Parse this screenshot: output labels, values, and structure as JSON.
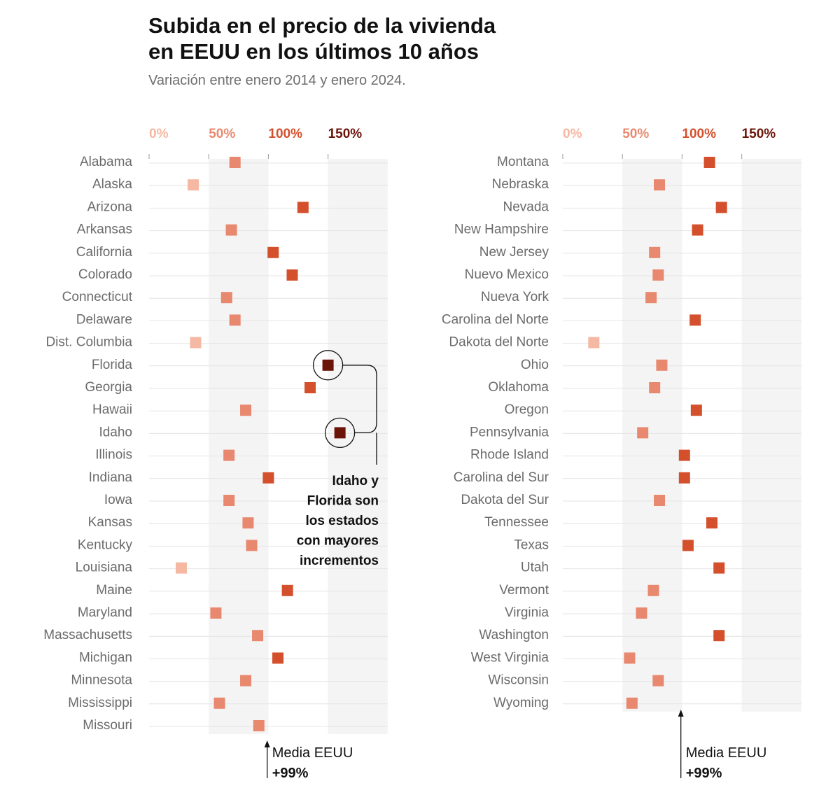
{
  "title_line1": "Subida en el precio de la vivienda",
  "title_line2": "en EEUU en los últimos 10 años",
  "subtitle": "Variación entre enero 2014 y enero 2024.",
  "colors": {
    "low": "#f5b8a2",
    "mid": "#e8896f",
    "high": "#d4502c",
    "top": "#6b1408",
    "band": "#f4f4f4",
    "grid": "#e4e4e4"
  },
  "annotation": [
    "Idaho y",
    "Florida son",
    "los estados",
    "con mayores",
    "incrementos"
  ],
  "mean_label": "Media EEUU",
  "mean_value_label": "+99%",
  "chart_data": [
    {
      "type": "dot",
      "title": "Subida en el precio de la vivienda en EEUU en los últimos 10 años",
      "xlabel": "",
      "ylabel": "",
      "xlim": [
        0,
        200
      ],
      "ticks": [
        0,
        50,
        100,
        150
      ],
      "tick_labels": [
        "0%",
        "50%",
        "100%",
        "150%"
      ],
      "mean": 99,
      "categories": [
        "Alabama",
        "Alaska",
        "Arizona",
        "Arkansas",
        "California",
        "Colorado",
        "Connecticut",
        "Delaware",
        "Dist. Columbia",
        "Florida",
        "Georgia",
        "Hawaii",
        "Idaho",
        "Illinois",
        "Indiana",
        "Iowa",
        "Kansas",
        "Kentucky",
        "Louisiana",
        "Maine",
        "Maryland",
        "Massachusetts",
        "Michigan",
        "Minnesota",
        "Mississippi",
        "Missouri"
      ],
      "values": [
        72,
        37,
        129,
        69,
        104,
        120,
        65,
        72,
        39,
        150,
        135,
        81,
        160,
        67,
        100,
        67,
        83,
        86,
        27,
        116,
        56,
        91,
        108,
        81,
        59,
        92
      ]
    },
    {
      "type": "dot",
      "xlim": [
        0,
        200
      ],
      "ticks": [
        0,
        50,
        100,
        150
      ],
      "tick_labels": [
        "0%",
        "50%",
        "100%",
        "150%"
      ],
      "mean": 99,
      "categories": [
        "Montana",
        "Nebraska",
        "Nevada",
        "New Hampshire",
        "New Jersey",
        "Nuevo Mexico",
        "Nueva York",
        "Carolina del Norte",
        "Dakota del Norte",
        "Ohio",
        "Oklahoma",
        "Oregon",
        "Pennsylvania",
        "Rhode Island",
        "Carolina del Sur",
        "Dakota del Sur",
        "Tennessee",
        "Texas",
        "Utah",
        "Vermont",
        "Virginia",
        "Washington",
        "West Virginia",
        "Wisconsin",
        "Wyoming"
      ],
      "values": [
        123,
        81,
        133,
        113,
        77,
        80,
        74,
        111,
        26,
        83,
        77,
        112,
        67,
        102,
        102,
        81,
        125,
        105,
        131,
        76,
        66,
        131,
        56,
        80,
        58
      ]
    }
  ]
}
